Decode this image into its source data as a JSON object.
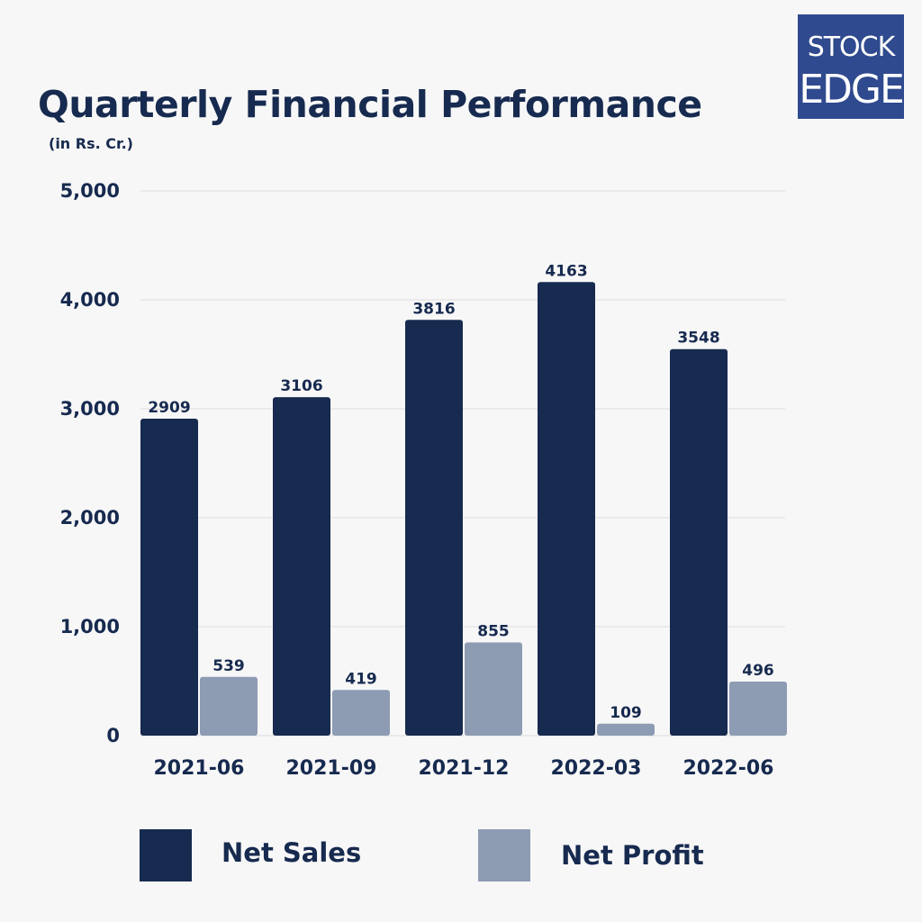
{
  "logo": {
    "line1": "STOCK",
    "line2": "EDGE",
    "background": "#2f4a8e"
  },
  "colors": {
    "net_sales": "#172a4f",
    "net_profit": "#8d9bb3",
    "text": "#172a4f",
    "grid": "#dcdcdc"
  },
  "chart_data": {
    "type": "bar",
    "title": "Quarterly Financial Performance",
    "subtitle": "(in Rs. Cr.)",
    "categories": [
      "2021-06",
      "2021-09",
      "2021-12",
      "2022-03",
      "2022-06"
    ],
    "series": [
      {
        "name": "Net Sales",
        "values": [
          2909,
          3106,
          3816,
          4163,
          3548
        ]
      },
      {
        "name": "Net Profit",
        "values": [
          539,
          419,
          855,
          109,
          496
        ]
      }
    ],
    "ylim": [
      0,
      5000
    ],
    "yticks": [
      0,
      1000,
      2000,
      3000,
      4000,
      5000
    ],
    "ytick_labels": [
      "0",
      "1,000",
      "2,000",
      "3,000",
      "4,000",
      "5,000"
    ],
    "grid": true,
    "legend_position": "bottom",
    "data_labels": true
  }
}
